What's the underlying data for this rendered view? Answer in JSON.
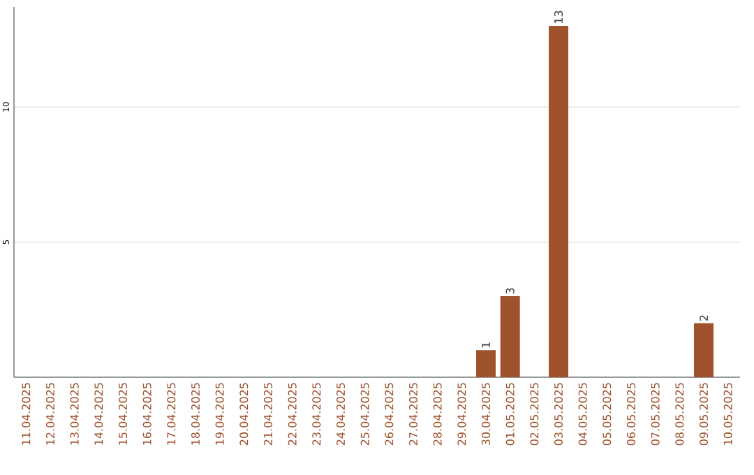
{
  "chart_data": {
    "type": "bar",
    "categories": [
      "11.04.2025",
      "12.04.2025",
      "13.04.2025",
      "14.04.2025",
      "15.04.2025",
      "16.04.2025",
      "17.04.2025",
      "18.04.2025",
      "19.04.2025",
      "20.04.2025",
      "21.04.2025",
      "22.04.2025",
      "23.04.2025",
      "24.04.2025",
      "25.04.2025",
      "26.04.2025",
      "27.04.2025",
      "28.04.2025",
      "29.04.2025",
      "30.04.2025",
      "01.05.2025",
      "02.05.2025",
      "03.05.2025",
      "04.05.2025",
      "05.05.2025",
      "06.05.2025",
      "07.05.2025",
      "08.05.2025",
      "09.05.2025",
      "10.05.2025"
    ],
    "values": [
      0,
      0,
      0,
      0,
      0,
      0,
      0,
      0,
      0,
      0,
      0,
      0,
      0,
      0,
      0,
      0,
      0,
      0,
      0,
      1,
      3,
      0,
      13,
      0,
      0,
      0,
      0,
      0,
      2,
      0
    ],
    "value_labels": [
      null,
      null,
      null,
      null,
      null,
      null,
      null,
      null,
      null,
      null,
      null,
      null,
      null,
      null,
      null,
      null,
      null,
      null,
      null,
      "1",
      "3",
      null,
      "13",
      null,
      null,
      null,
      null,
      null,
      "2",
      null
    ],
    "color": "#a0522d",
    "ylim": [
      0,
      13.7
    ],
    "yticks": [
      5,
      10
    ],
    "grid": "y"
  }
}
